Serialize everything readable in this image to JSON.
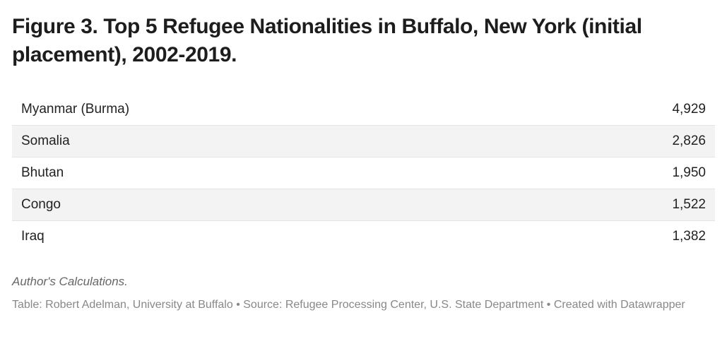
{
  "header": {
    "title": "Figure 3. Top 5 Refugee Nationalities in Buffalo, New York (initial placement), 2002-2019."
  },
  "table": {
    "rows": [
      [
        "Myanmar (Burma)",
        "4,929"
      ],
      [
        "Somalia",
        "2,826"
      ],
      [
        "Bhutan",
        "1,950"
      ],
      [
        "Congo",
        "1,522"
      ],
      [
        "Iraq",
        "1,382"
      ]
    ]
  },
  "notes": "Author's Calculations.",
  "source": "Table: Robert Adelman, University at Buffalo • Source: Refugee Processing Center, U.S. State Department • Created with Datawrapper"
}
